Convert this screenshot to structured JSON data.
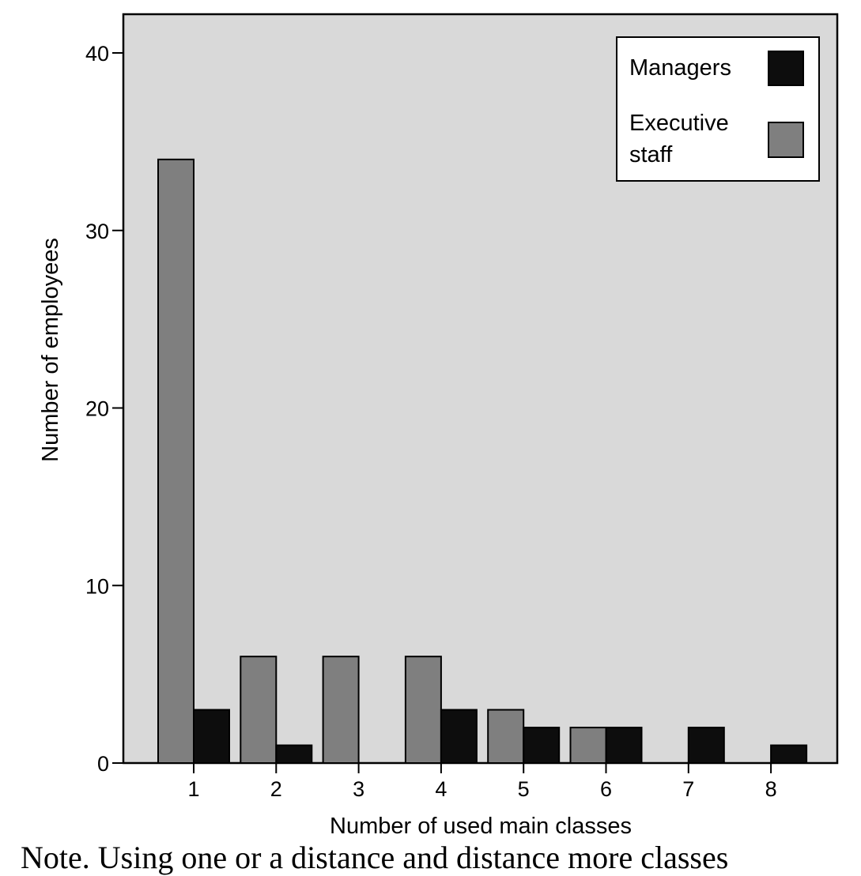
{
  "chart_data": {
    "type": "bar",
    "categories": [
      "1",
      "2",
      "3",
      "4",
      "5",
      "6",
      "7",
      "8"
    ],
    "series": [
      {
        "name": "Executive staff",
        "values": [
          34,
          6,
          6,
          6,
          3,
          2,
          0,
          0
        ],
        "color": "#7f7f7f"
      },
      {
        "name": "Managers",
        "values": [
          3,
          1,
          0,
          3,
          2,
          2,
          2,
          1
        ],
        "color": "#0d0d0d"
      }
    ],
    "title": "",
    "xlabel": "Number of used main classes",
    "ylabel": "Number of employees",
    "ylim": [
      0,
      42
    ],
    "yticks": [
      0,
      10,
      20,
      30,
      40
    ],
    "grid": false,
    "legend_position": "top-right",
    "legend": {
      "managers_label": "Managers",
      "executive_label_line1": "Executive",
      "executive_label_line2": "staff"
    },
    "plot_background": "#d9d9d9"
  },
  "note_text": "Note. Using one or a distance and distance more classes"
}
